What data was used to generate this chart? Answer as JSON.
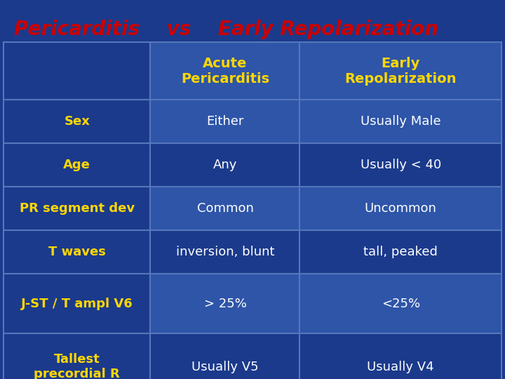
{
  "title_text": "Pericarditis    vs    Early Repolarization",
  "title_color": "#CC0000",
  "bg_color": "#1B3A8C",
  "table_bg_dark": "#1B3A8C",
  "table_bg_mid": "#2E55A8",
  "cell_line_color": "#5577BB",
  "header_text_color": "#FFD700",
  "row_label_color": "#FFD700",
  "data_text_color": "#FFFFFF",
  "rows": [
    [
      "Sex",
      "Either",
      "Usually Male"
    ],
    [
      "Age",
      "Any",
      "Usually < 40"
    ],
    [
      "PR segment dev",
      "Common",
      "Uncommon"
    ],
    [
      "T waves",
      "inversion, blunt",
      "tall, peaked"
    ],
    [
      "J-ST / T ampl V6",
      "> 25%",
      "<25%"
    ],
    [
      "Tallest\nprecordial R",
      "Usually V5",
      "Usually V4"
    ]
  ],
  "col_headers": [
    "Acute\nPericarditis",
    "Early\nRepolarization"
  ],
  "figsize": [
    7.2,
    5.4
  ],
  "dpi": 100,
  "title_fontsize": 20,
  "header_fontsize": 14,
  "label_fontsize": 13,
  "data_fontsize": 13
}
